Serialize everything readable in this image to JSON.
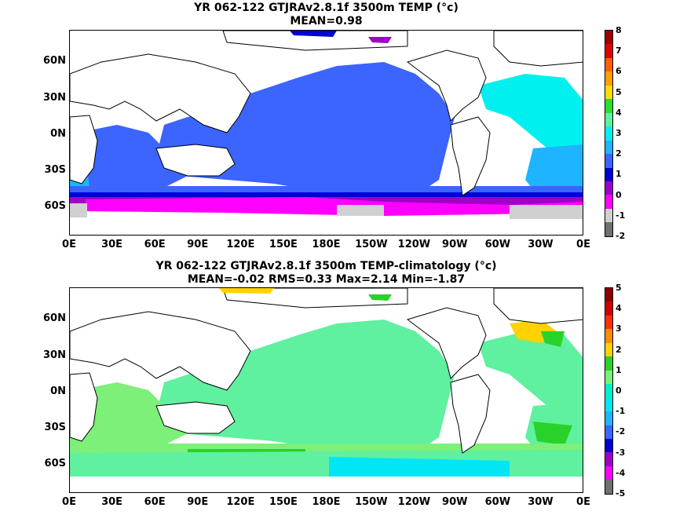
{
  "panel_top": {
    "title_line1": "YR 062-122 GTJRAv2.8.1f 3500m TEMP (°c)",
    "title_line2": "MEAN=0.98",
    "colorbar_labels": [
      "8",
      "7",
      "6",
      "5",
      "4",
      "3",
      "2",
      "1",
      "0",
      "-1",
      "-2"
    ],
    "colorbar_colors": [
      "#a00000",
      "#e00000",
      "#ff6000",
      "#ff9f00",
      "#ffdc00",
      "#28e028",
      "#5ff0a0",
      "#00f0f0",
      "#1eb4ff",
      "#3c64ff",
      "#0000d8",
      "#a000c8",
      "#ff00ff",
      "#d0d0d0",
      "#707070"
    ]
  },
  "panel_bottom": {
    "title_line1": "YR 062-122 GTJRAv2.8.1f 3500m TEMP-climatology (°c)",
    "title_line2": "MEAN=-0.02   RMS=0.33   Max=2.14   Min=-1.87",
    "colorbar_labels": [
      "5",
      "4",
      "3",
      "2",
      "1",
      "0",
      "-1",
      "-2",
      "-3",
      "-4",
      "-5"
    ],
    "colorbar_colors": [
      "#8c0000",
      "#d00000",
      "#ff3000",
      "#ff8c00",
      "#ffd200",
      "#28d228",
      "#7cf078",
      "#00f0c8",
      "#00e6f5",
      "#1eb4ff",
      "#3c64ff",
      "#0000d0",
      "#a000c8",
      "#ff00ff",
      "#707070"
    ]
  },
  "axes": {
    "x_ticks": [
      "0E",
      "30E",
      "60E",
      "90E",
      "120E",
      "150E",
      "180E",
      "150W",
      "120W",
      "90W",
      "60W",
      "30W",
      "0E"
    ],
    "y_ticks": [
      "60N",
      "30N",
      "0N",
      "30S",
      "60S"
    ]
  }
}
